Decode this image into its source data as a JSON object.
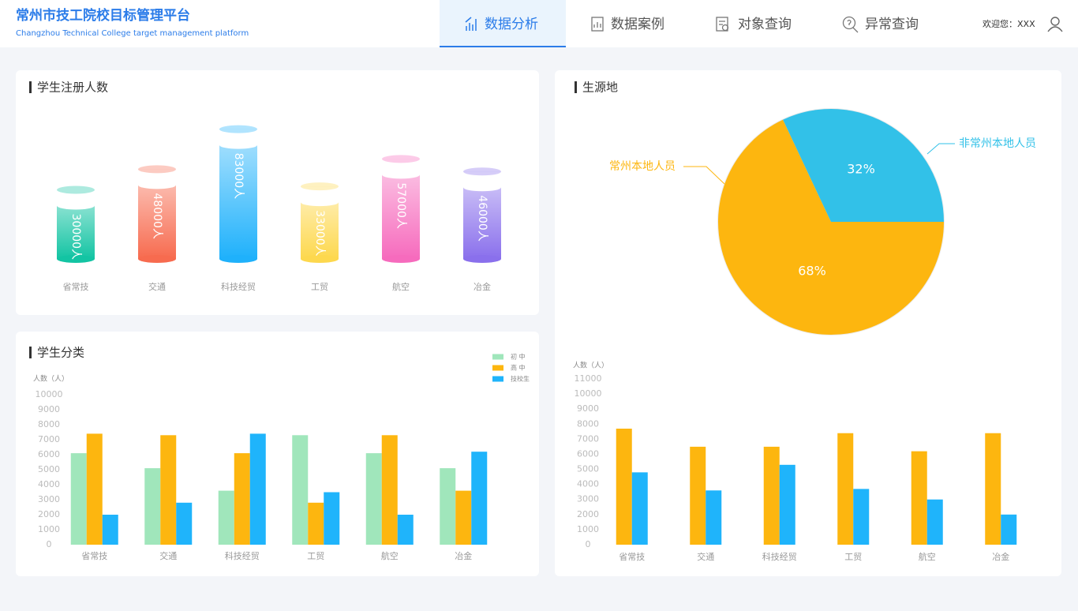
{
  "header": {
    "title": "常州市技工院校目标管理平台",
    "subtitle": "Changzhou Technical College target management platform"
  },
  "nav": {
    "items": [
      "数据分析",
      "数据案例",
      "对象查询",
      "异常查询"
    ],
    "active": 0
  },
  "user": {
    "greeting": "欢迎您：XXX"
  },
  "chart_data": [
    {
      "type": "cylinder",
      "title": "学生注册人数",
      "categories": [
        "省常技",
        "交通",
        "科技经贸",
        "工贸",
        "航空",
        "冶金"
      ],
      "values": [
        30000,
        48000,
        83000,
        33000,
        57000,
        46000
      ],
      "value_labels": [
        "30000人",
        "48000人",
        "83000人",
        "33000人",
        "57000人",
        "46000人"
      ],
      "colors": [
        "#13c4a3",
        "#f76b4f",
        "#1fb1fb",
        "#fdd84e",
        "#f66bbd",
        "#8a70ec"
      ]
    },
    {
      "type": "pie",
      "title": "生源地",
      "categories": [
        "常州本地人员",
        "非常州本地人员"
      ],
      "values": [
        68,
        32
      ],
      "value_labels": [
        "68%",
        "32%"
      ],
      "colors": [
        "#fdb60f",
        "#32c1e8"
      ]
    },
    {
      "type": "bar",
      "title": "学生分类",
      "y_label": "人数（人）",
      "categories": [
        "省常技",
        "交通",
        "科技经贸",
        "工贸",
        "航空",
        "冶金"
      ],
      "series": [
        {
          "name": "初 中",
          "color": "#a0e6bb",
          "values": [
            6100,
            5100,
            3600,
            7300,
            6100,
            5100
          ]
        },
        {
          "name": "高 中",
          "color": "#fdb60f",
          "values": [
            7400,
            7300,
            6100,
            2800,
            7300,
            3600
          ]
        },
        {
          "name": "技校生",
          "color": "#1fb4fb",
          "values": [
            2000,
            2800,
            7400,
            3500,
            2000,
            6200
          ]
        }
      ],
      "ylim": [
        0,
        10000
      ],
      "yticks": [
        0,
        1000,
        2000,
        3000,
        4000,
        5000,
        6000,
        7000,
        8000,
        9000,
        10000
      ]
    },
    {
      "type": "bar",
      "y_label": "人数（人）",
      "categories": [
        "省常技",
        "交通",
        "科技经贸",
        "工贸",
        "航空",
        "冶金"
      ],
      "series": [
        {
          "color": "#fdb60f",
          "values": [
            7700,
            6500,
            6500,
            7400,
            6200,
            7400
          ]
        },
        {
          "color": "#1fb4fb",
          "values": [
            4800,
            3600,
            5300,
            3700,
            3000,
            2000
          ]
        }
      ],
      "ylim": [
        0,
        11000
      ],
      "yticks": [
        0,
        1000,
        2000,
        3000,
        4000,
        5000,
        6000,
        7000,
        8000,
        9000,
        10000,
        11000
      ]
    }
  ]
}
